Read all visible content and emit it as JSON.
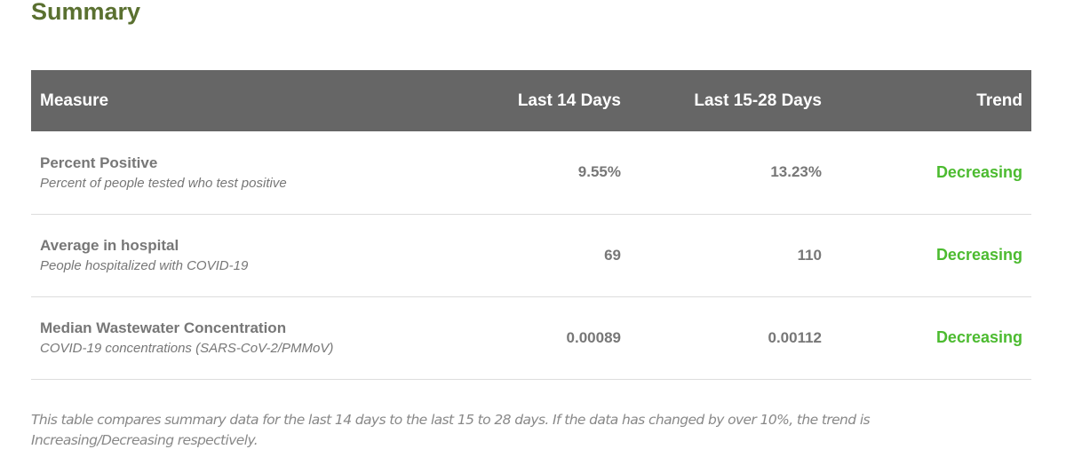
{
  "title": "Summary",
  "colors": {
    "title": "#5a7030",
    "header_bg": "#666666",
    "trend": "#4cbb30"
  },
  "table": {
    "headers": [
      "Measure",
      "Last 14 Days",
      "Last 15-28 Days",
      "Trend"
    ],
    "rows": [
      {
        "name": "Percent Positive",
        "description": "Percent of people tested who test positive",
        "last14": "9.55%",
        "last15_28": "13.23%",
        "trend": "Decreasing"
      },
      {
        "name": "Average in hospital",
        "description": "People hospitalized with COVID-19",
        "last14": "69",
        "last15_28": "110",
        "trend": "Decreasing"
      },
      {
        "name": "Median Wastewater Concentration",
        "description": "COVID-19 concentrations (SARS-CoV-2/PMMoV)",
        "last14": "0.00089",
        "last15_28": "0.00112",
        "trend": "Decreasing"
      }
    ]
  },
  "footnote": "This table compares summary data for the last 14 days to the last 15 to 28 days. If the data has changed by over 10%, the trend is Increasing/Decreasing respectively."
}
